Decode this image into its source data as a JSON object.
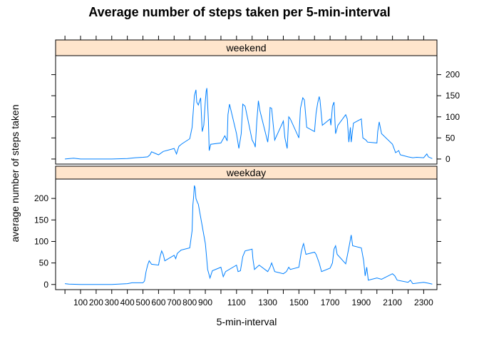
{
  "chart_data": {
    "type": "line",
    "title": "Average number of steps taken per 5-min-interval",
    "xlabel": "5-min-interval",
    "ylabel": "average number of steps taken",
    "xlim": [
      -60,
      2385
    ],
    "ylim": [
      -12,
      245
    ],
    "x_ticks": [
      100,
      200,
      300,
      400,
      500,
      600,
      700,
      800,
      900,
      1100,
      1300,
      1500,
      1700,
      1900,
      2100,
      2300
    ],
    "x_tick_marks": [
      0,
      100,
      200,
      300,
      400,
      500,
      600,
      700,
      800,
      900,
      1000,
      1100,
      1200,
      1300,
      1400,
      1500,
      1600,
      1700,
      1800,
      1900,
      2000,
      2100,
      2200,
      2300
    ],
    "y_ticks": [
      0,
      50,
      100,
      150,
      200
    ],
    "line_color": "#0080ff",
    "strip_color": "#ffe5cc",
    "panels": [
      {
        "name": "weekend",
        "y_axis_side": "right",
        "points": [
          [
            0,
            0
          ],
          [
            55,
            2
          ],
          [
            100,
            0
          ],
          [
            200,
            0
          ],
          [
            300,
            0
          ],
          [
            400,
            1
          ],
          [
            450,
            3
          ],
          [
            500,
            4
          ],
          [
            530,
            5
          ],
          [
            545,
            10
          ],
          [
            555,
            17
          ],
          [
            600,
            10
          ],
          [
            630,
            18
          ],
          [
            700,
            25
          ],
          [
            715,
            12
          ],
          [
            730,
            30
          ],
          [
            750,
            36
          ],
          [
            800,
            48
          ],
          [
            815,
            75
          ],
          [
            830,
            150
          ],
          [
            840,
            164
          ],
          [
            845,
            135
          ],
          [
            855,
            128
          ],
          [
            870,
            145
          ],
          [
            880,
            65
          ],
          [
            890,
            80
          ],
          [
            900,
            138
          ],
          [
            905,
            160
          ],
          [
            910,
            168
          ],
          [
            920,
            90
          ],
          [
            925,
            20
          ],
          [
            935,
            35
          ],
          [
            1000,
            38
          ],
          [
            1025,
            55
          ],
          [
            1040,
            43
          ],
          [
            1045,
            105
          ],
          [
            1055,
            130
          ],
          [
            1100,
            60
          ],
          [
            1115,
            25
          ],
          [
            1130,
            60
          ],
          [
            1140,
            130
          ],
          [
            1155,
            125
          ],
          [
            1200,
            45
          ],
          [
            1215,
            35
          ],
          [
            1220,
            28
          ],
          [
            1230,
            90
          ],
          [
            1240,
            138
          ],
          [
            1250,
            115
          ],
          [
            1300,
            40
          ],
          [
            1310,
            75
          ],
          [
            1315,
            122
          ],
          [
            1325,
            120
          ],
          [
            1345,
            45
          ],
          [
            1400,
            90
          ],
          [
            1410,
            50
          ],
          [
            1425,
            25
          ],
          [
            1435,
            100
          ],
          [
            1445,
            95
          ],
          [
            1500,
            50
          ],
          [
            1510,
            120
          ],
          [
            1525,
            145
          ],
          [
            1535,
            140
          ],
          [
            1550,
            75
          ],
          [
            1600,
            65
          ],
          [
            1610,
            108
          ],
          [
            1620,
            132
          ],
          [
            1630,
            148
          ],
          [
            1635,
            140
          ],
          [
            1650,
            80
          ],
          [
            1700,
            95
          ],
          [
            1705,
            80
          ],
          [
            1715,
            125
          ],
          [
            1725,
            135
          ],
          [
            1735,
            60
          ],
          [
            1750,
            80
          ],
          [
            1800,
            105
          ],
          [
            1810,
            95
          ],
          [
            1820,
            40
          ],
          [
            1830,
            75
          ],
          [
            1835,
            40
          ],
          [
            1850,
            85
          ],
          [
            1900,
            95
          ],
          [
            1910,
            50
          ],
          [
            1930,
            45
          ],
          [
            1940,
            40
          ],
          [
            2000,
            38
          ],
          [
            2005,
            65
          ],
          [
            2015,
            88
          ],
          [
            2030,
            60
          ],
          [
            2100,
            35
          ],
          [
            2120,
            15
          ],
          [
            2140,
            20
          ],
          [
            2150,
            10
          ],
          [
            2200,
            5
          ],
          [
            2230,
            3
          ],
          [
            2255,
            4
          ],
          [
            2300,
            3
          ],
          [
            2320,
            12
          ],
          [
            2330,
            5
          ],
          [
            2355,
            1
          ]
        ]
      },
      {
        "name": "weekday",
        "y_axis_side": "left",
        "points": [
          [
            0,
            2
          ],
          [
            25,
            1
          ],
          [
            100,
            0
          ],
          [
            200,
            0
          ],
          [
            300,
            0
          ],
          [
            400,
            2
          ],
          [
            430,
            4
          ],
          [
            500,
            4
          ],
          [
            510,
            8
          ],
          [
            520,
            30
          ],
          [
            530,
            45
          ],
          [
            540,
            55
          ],
          [
            555,
            47
          ],
          [
            600,
            45
          ],
          [
            610,
            65
          ],
          [
            620,
            78
          ],
          [
            630,
            70
          ],
          [
            640,
            55
          ],
          [
            700,
            68
          ],
          [
            710,
            60
          ],
          [
            720,
            72
          ],
          [
            745,
            80
          ],
          [
            800,
            85
          ],
          [
            815,
            125
          ],
          [
            820,
            185
          ],
          [
            825,
            205
          ],
          [
            830,
            230
          ],
          [
            835,
            224
          ],
          [
            840,
            200
          ],
          [
            850,
            190
          ],
          [
            855,
            187
          ],
          [
            900,
            95
          ],
          [
            905,
            75
          ],
          [
            915,
            35
          ],
          [
            930,
            15
          ],
          [
            945,
            32
          ],
          [
            1000,
            40
          ],
          [
            1015,
            18
          ],
          [
            1030,
            30
          ],
          [
            1100,
            45
          ],
          [
            1110,
            30
          ],
          [
            1125,
            32
          ],
          [
            1140,
            65
          ],
          [
            1155,
            78
          ],
          [
            1200,
            82
          ],
          [
            1205,
            60
          ],
          [
            1215,
            35
          ],
          [
            1230,
            40
          ],
          [
            1245,
            45
          ],
          [
            1300,
            30
          ],
          [
            1315,
            40
          ],
          [
            1325,
            50
          ],
          [
            1345,
            30
          ],
          [
            1400,
            25
          ],
          [
            1420,
            30
          ],
          [
            1435,
            40
          ],
          [
            1445,
            35
          ],
          [
            1500,
            40
          ],
          [
            1515,
            75
          ],
          [
            1525,
            90
          ],
          [
            1530,
            95
          ],
          [
            1545,
            70
          ],
          [
            1600,
            75
          ],
          [
            1610,
            70
          ],
          [
            1630,
            50
          ],
          [
            1645,
            30
          ],
          [
            1700,
            38
          ],
          [
            1715,
            50
          ],
          [
            1725,
            82
          ],
          [
            1735,
            90
          ],
          [
            1745,
            70
          ],
          [
            1800,
            48
          ],
          [
            1820,
            85
          ],
          [
            1830,
            105
          ],
          [
            1835,
            115
          ],
          [
            1845,
            90
          ],
          [
            1900,
            85
          ],
          [
            1915,
            55
          ],
          [
            1925,
            20
          ],
          [
            1935,
            40
          ],
          [
            1945,
            10
          ],
          [
            2000,
            15
          ],
          [
            2030,
            12
          ],
          [
            2100,
            25
          ],
          [
            2115,
            20
          ],
          [
            2130,
            10
          ],
          [
            2200,
            5
          ],
          [
            2215,
            10
          ],
          [
            2230,
            2
          ],
          [
            2300,
            5
          ],
          [
            2330,
            3
          ],
          [
            2355,
            1
          ]
        ]
      }
    ]
  }
}
